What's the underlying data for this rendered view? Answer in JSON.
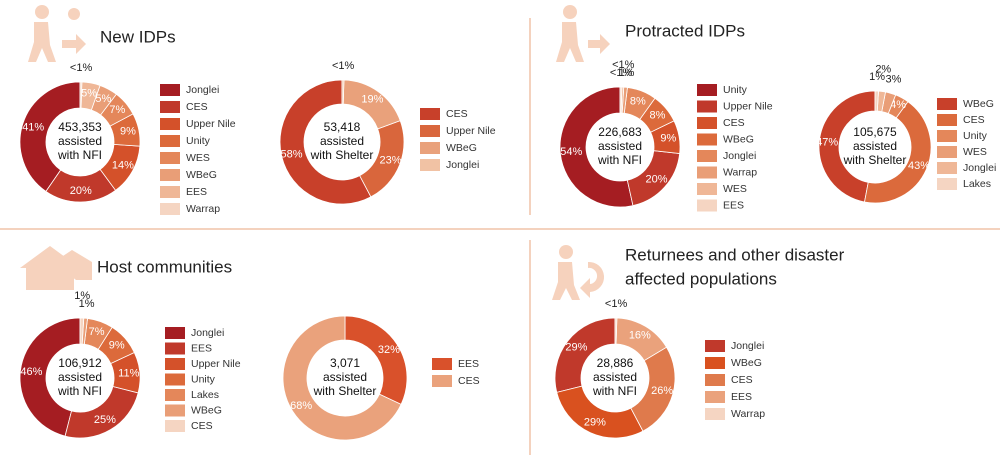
{
  "sections": [
    {
      "title": [
        "New IDPs"
      ]
    },
    {
      "title": [
        "Protracted IDPs"
      ]
    },
    {
      "title": [
        "Host communities"
      ]
    },
    {
      "title": [
        "Returnees and other disaster",
        "affected populations"
      ]
    }
  ],
  "chart_data": [
    {
      "type": "pie",
      "categories": [
        "Jonglei",
        "CES",
        "Upper Nile",
        "Unity",
        "WES",
        "WBeG",
        "EES",
        "Warrap"
      ],
      "values": [
        41,
        20,
        14,
        9,
        7,
        5,
        5,
        0.5
      ],
      "value_labels": [
        "41%",
        "20%",
        "14%",
        "9%",
        "7%",
        "5%",
        "5%",
        "<1%"
      ],
      "colors": [
        "#a51d22",
        "#c0392b",
        "#d4512a",
        "#dc6a3b",
        "#e4875a",
        "#e99e77",
        "#efb797",
        "#f5d5c2"
      ],
      "center_label": [
        "453,353",
        "assisted",
        "with NFI"
      ],
      "clockwise": false
    },
    {
      "type": "pie",
      "categories": [
        "CES",
        "Upper Nile",
        "WBeG",
        "Jonglei"
      ],
      "values": [
        58,
        23,
        19,
        0.5
      ],
      "value_labels": [
        "58%",
        "23%",
        "19%",
        "<1%"
      ],
      "colors": [
        "#c8402a",
        "#d9663c",
        "#e9a17b",
        "#f1c2a4"
      ],
      "center_label": [
        "53,418",
        "assisted",
        "with Shelter"
      ],
      "clockwise": false
    },
    {
      "type": "pie",
      "categories": [
        "Unity",
        "Upper Nile",
        "CES",
        "WBeG",
        "Jonglei",
        "Warrap",
        "WES",
        "EES"
      ],
      "values": [
        54,
        20,
        9,
        8,
        8,
        1,
        0.5,
        0.5
      ],
      "value_labels": [
        "54%",
        "20%",
        "9%",
        "8%",
        "8%",
        "1%",
        "<1%",
        "<1%"
      ],
      "colors": [
        "#a51d22",
        "#c0392b",
        "#d4512a",
        "#dc6a3b",
        "#e4875a",
        "#e99e77",
        "#efb797",
        "#f5d5c2"
      ],
      "center_label": [
        "226,683",
        "assisted",
        "with NFI"
      ],
      "clockwise": false
    },
    {
      "type": "pie",
      "categories": [
        "WBeG",
        "CES",
        "Unity",
        "WES",
        "Jonglei",
        "Lakes"
      ],
      "values": [
        47,
        43,
        4,
        3,
        2,
        1
      ],
      "value_labels": [
        "47%",
        "43%",
        "4%",
        "3%",
        "2%",
        "1%"
      ],
      "colors": [
        "#c8402a",
        "#db6a3c",
        "#e4875a",
        "#e99e77",
        "#efb797",
        "#f5d5c2"
      ],
      "center_label": [
        "105,675",
        "assisted",
        "with Shelter"
      ],
      "clockwise": false
    },
    {
      "type": "pie",
      "categories": [
        "Jonglei",
        "EES",
        "Upper Nile",
        "Unity",
        "Lakes",
        "WBeG",
        "CES"
      ],
      "values": [
        46,
        25,
        11,
        9,
        7,
        1,
        1
      ],
      "value_labels": [
        "46%",
        "25%",
        "11%",
        "9%",
        "7%",
        "1%",
        "1%"
      ],
      "colors": [
        "#a51d22",
        "#c0392b",
        "#d4512a",
        "#dc6a3b",
        "#e4875a",
        "#e99e77",
        "#f5d5c2"
      ],
      "center_label": [
        "106,912",
        "assisted",
        "with NFI"
      ],
      "clockwise": false
    },
    {
      "type": "pie",
      "categories": [
        "EES",
        "CES"
      ],
      "values": [
        32,
        68
      ],
      "value_labels": [
        "32%",
        "68%"
      ],
      "colors": [
        "#d9512b",
        "#eaa27c"
      ],
      "center_label": [
        "3,071",
        "assisted",
        "with Shelter"
      ],
      "clockwise": true
    },
    {
      "type": "pie",
      "categories": [
        "Jonglei",
        "WBeG",
        "CES",
        "EES",
        "Warrap"
      ],
      "values": [
        29,
        29,
        26,
        16,
        0.5
      ],
      "value_labels": [
        "29%",
        "29%",
        "26%",
        "16%",
        "<1%"
      ],
      "colors": [
        "#c0392b",
        "#d9511f",
        "#df7a4c",
        "#eaa27c",
        "#f5d5c2"
      ],
      "center_label": [
        "28,886",
        "assisted",
        "with NFI"
      ],
      "clockwise": false
    }
  ]
}
